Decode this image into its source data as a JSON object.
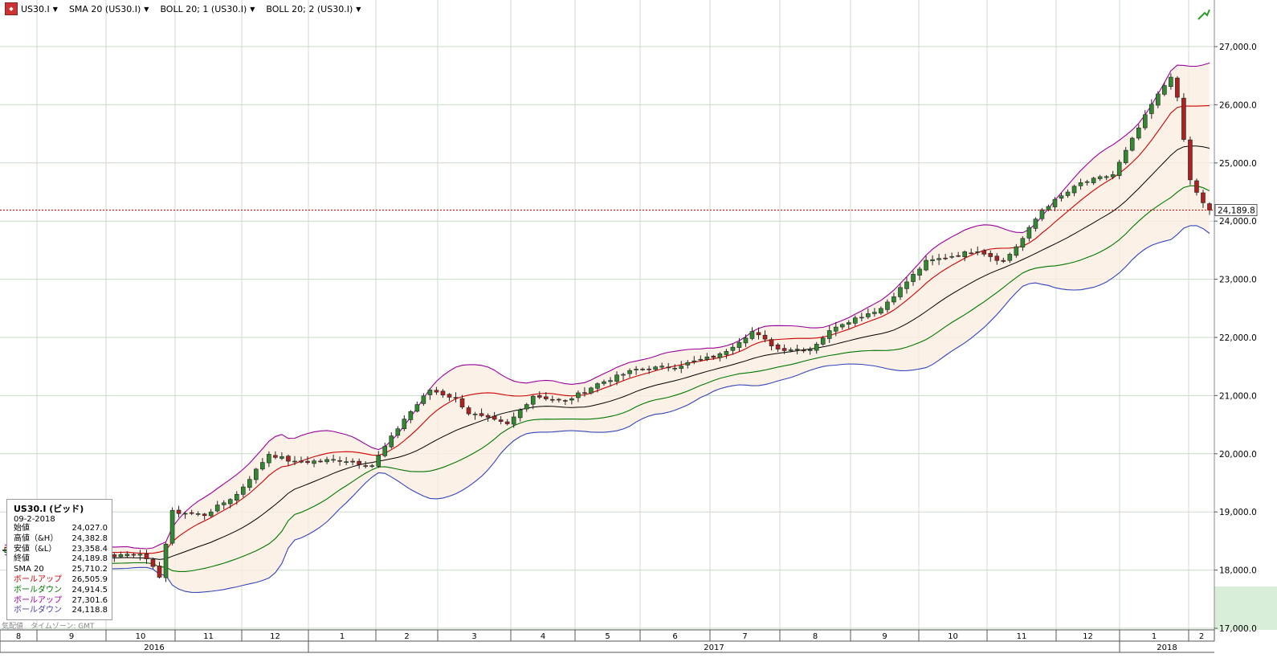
{
  "toolbar": {
    "items": [
      {
        "label": "US30.I",
        "caret": "▼"
      },
      {
        "label": "SMA 20 (US30.I)",
        "caret": "▼"
      },
      {
        "label": "BOLL 20; 1 (US30.I)",
        "caret": "▼"
      },
      {
        "label": "BOLL 20; 2 (US30.I)",
        "caret": "▼"
      }
    ],
    "trend_icon": "trend-up-icon"
  },
  "legend": {
    "title": "US30.I (ビッド)",
    "date": "09-2-2018",
    "rows": [
      {
        "label": "始値",
        "value": "24,027.0",
        "color": "#000000"
      },
      {
        "label": "高値（&H）",
        "value": "24,382.8",
        "color": "#000000"
      },
      {
        "label": "安値（&L）",
        "value": "23,358.4",
        "color": "#000000"
      },
      {
        "label": "終値",
        "value": "24,189.8",
        "color": "#000000"
      },
      {
        "label": "SMA 20",
        "value": "25,710.2",
        "color": "#000000"
      },
      {
        "label": "ボールアップ",
        "value": "26,505.9",
        "color": "#cc0000"
      },
      {
        "label": "ボールダウン",
        "value": "24,914.5",
        "color": "#007700"
      },
      {
        "label": "ボールアップ",
        "value": "27,301.6",
        "color": "#990099"
      },
      {
        "label": "ボールダウン",
        "value": "24,118.8",
        "color": "#4444aa"
      }
    ]
  },
  "footnote": "気配値　タイムゾーン: GMT",
  "chart_data": {
    "type": "candlestick",
    "ylim": [
      17000,
      27600
    ],
    "y_ticks": [
      "17,000.0",
      "18,000.0",
      "19,000.0",
      "20,000.0",
      "21,000.0",
      "22,000.0",
      "23,000.0",
      "24,000.0",
      "25,000.0",
      "26,000.0",
      "27,000.0"
    ],
    "y_tick_values": [
      17000,
      18000,
      19000,
      20000,
      21000,
      22000,
      23000,
      24000,
      25000,
      26000,
      27000
    ],
    "current_price": 24189.8,
    "current_price_label": "24,189.8",
    "months": [
      "8",
      "9",
      "10",
      "11",
      "12",
      "1",
      "2",
      "3",
      "4",
      "5",
      "6",
      "7",
      "8",
      "9",
      "10",
      "11",
      "12",
      "1",
      "2"
    ],
    "years": [
      {
        "label": "2016",
        "from_month": 0,
        "to_month": 4
      },
      {
        "label": "2017",
        "from_month": 5,
        "to_month": 16
      },
      {
        "label": "2018",
        "from_month": 17,
        "to_month": 18
      }
    ],
    "close_path": [
      [
        0,
        18350
      ],
      [
        4,
        18200
      ],
      [
        10,
        18150
      ],
      [
        17,
        18250
      ],
      [
        21,
        18300
      ],
      [
        24,
        17900
      ],
      [
        26,
        19000
      ],
      [
        31,
        18950
      ],
      [
        36,
        19300
      ],
      [
        41,
        20000
      ],
      [
        45,
        19850
      ],
      [
        52,
        19900
      ],
      [
        57,
        19800
      ],
      [
        62,
        20600
      ],
      [
        66,
        21100
      ],
      [
        70,
        20950
      ],
      [
        72,
        20700
      ],
      [
        78,
        20500
      ],
      [
        82,
        21000
      ],
      [
        87,
        20900
      ],
      [
        92,
        21200
      ],
      [
        98,
        21450
      ],
      [
        104,
        21500
      ],
      [
        111,
        21700
      ],
      [
        116,
        22100
      ],
      [
        120,
        21800
      ],
      [
        125,
        21800
      ],
      [
        129,
        22200
      ],
      [
        136,
        22500
      ],
      [
        143,
        23300
      ],
      [
        151,
        23500
      ],
      [
        155,
        23300
      ],
      [
        158,
        23700
      ],
      [
        161,
        24200
      ],
      [
        167,
        24650
      ],
      [
        172,
        24800
      ],
      [
        178,
        26000
      ],
      [
        181,
        26500
      ],
      [
        182,
        26100
      ],
      [
        184,
        24700
      ],
      [
        186,
        24300
      ],
      [
        187,
        24190
      ]
    ],
    "colors": {
      "sma": "#000000",
      "boll1_up": "#cc0000",
      "boll1_down": "#007700",
      "boll2_up": "#990099",
      "boll2_down": "#3344bb",
      "candle_up": "#338833",
      "candle_down": "#aa2222",
      "current_line": "#cc0000",
      "grid": "#c8dcc8"
    }
  }
}
